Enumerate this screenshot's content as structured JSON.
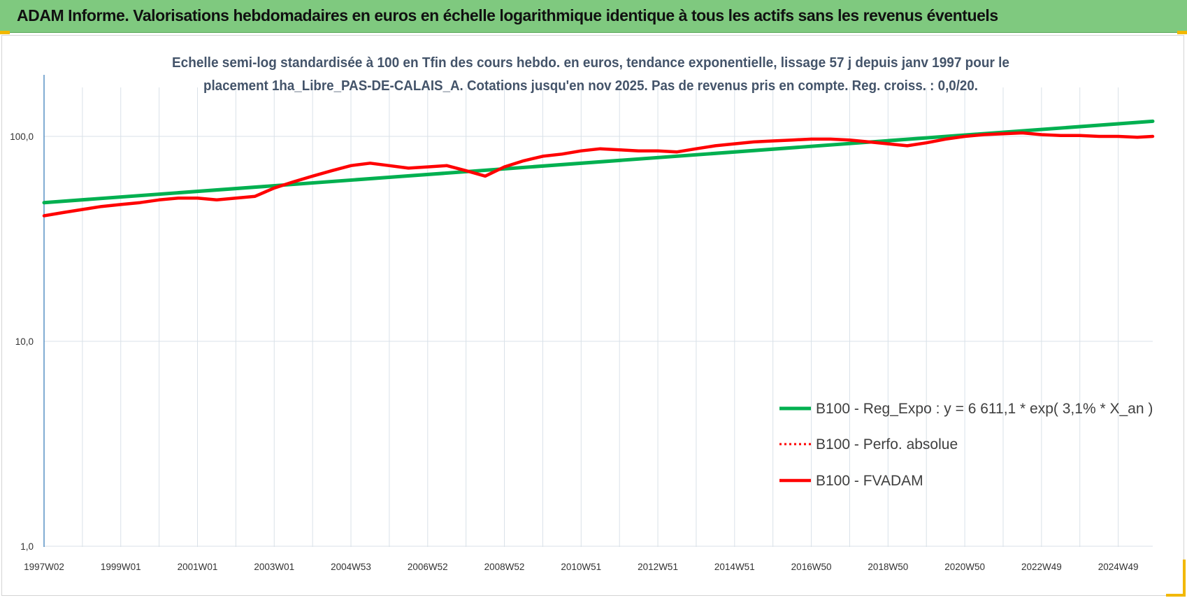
{
  "header": {
    "title": "ADAM Informe. Valorisations hebdomadaires en euros en échelle logarithmique identique à tous les actifs sans les revenus éventuels"
  },
  "colors": {
    "banner": "#7fc97f",
    "trend": "#00b050",
    "series": "#ff0000",
    "grid": "#d9e1e8",
    "axis": "#2e75b6",
    "accent": "#f2b800"
  },
  "chart_data": {
    "type": "line",
    "title_lines": [
      "Echelle semi-log standardisée à 100 en Tfin des cours hebdo. en euros, tendance exponentielle, lissage 57 j depuis janv 1997 pour le",
      "placement 1ha_Libre_PAS-DE-CALAIS_A. Cotations jusqu'en nov 2025. Pas de revenus pris en compte. Reg. croiss. : 0,0/20."
    ],
    "y_scale": "log",
    "ylim": [
      1,
      200
    ],
    "y_ticks": [
      {
        "value": 1,
        "label": "1,0"
      },
      {
        "value": 10,
        "label": "10,0"
      },
      {
        "value": 100,
        "label": "100,0"
      }
    ],
    "x_range": [
      1997.0,
      2025.9
    ],
    "x_ticks": [
      {
        "x": 1997.0,
        "label": "1997W02"
      },
      {
        "x": 1999.0,
        "label": "1999W01"
      },
      {
        "x": 2001.0,
        "label": "2001W01"
      },
      {
        "x": 2003.0,
        "label": "2003W01"
      },
      {
        "x": 2005.0,
        "label": "2004W53"
      },
      {
        "x": 2007.0,
        "label": "2006W52"
      },
      {
        "x": 2009.0,
        "label": "2008W52"
      },
      {
        "x": 2011.0,
        "label": "2010W51"
      },
      {
        "x": 2013.0,
        "label": "2012W51"
      },
      {
        "x": 2015.0,
        "label": "2014W51"
      },
      {
        "x": 2017.0,
        "label": "2016W50"
      },
      {
        "x": 2019.0,
        "label": "2018W50"
      },
      {
        "x": 2021.0,
        "label": "2020W50"
      },
      {
        "x": 2023.0,
        "label": "2022W49"
      },
      {
        "x": 2025.0,
        "label": "2024W49"
      }
    ],
    "grid": true,
    "legend_position": "bottom-right",
    "series": [
      {
        "name": "B100 - Reg_Expo : y = 6 611,1 * exp( 3,1% *  X_an )",
        "style": "solid-green",
        "x": [
          1997.0,
          2025.9
        ],
        "y": [
          47.5,
          118.5
        ]
      },
      {
        "name": "B100 - Perfo. absolue",
        "style": "dotted-red",
        "x": [],
        "y": []
      },
      {
        "name": "B100 - FVADAM",
        "style": "solid-red",
        "x": [
          1997.0,
          1997.5,
          1998.0,
          1998.5,
          1999.0,
          1999.5,
          2000.0,
          2000.5,
          2001.0,
          2001.5,
          2002.0,
          2002.5,
          2003.0,
          2003.5,
          2004.0,
          2004.5,
          2005.0,
          2005.5,
          2006.0,
          2006.5,
          2007.0,
          2007.5,
          2008.0,
          2008.5,
          2009.0,
          2009.5,
          2010.0,
          2010.5,
          2011.0,
          2011.5,
          2012.0,
          2012.5,
          2013.0,
          2013.5,
          2014.0,
          2014.5,
          2015.0,
          2015.5,
          2016.0,
          2016.5,
          2017.0,
          2017.5,
          2018.0,
          2018.5,
          2019.0,
          2019.5,
          2020.0,
          2020.5,
          2021.0,
          2021.5,
          2022.0,
          2022.5,
          2023.0,
          2023.5,
          2024.0,
          2024.5,
          2025.0,
          2025.5,
          2025.9
        ],
        "y": [
          41,
          42.5,
          44,
          45.5,
          46.5,
          47.5,
          49,
          50,
          50,
          49,
          50,
          51,
          56,
          60,
          64,
          68,
          72,
          74,
          72,
          70,
          71,
          72,
          68,
          64,
          71,
          76,
          80,
          82,
          85,
          87,
          86,
          85,
          85,
          84,
          87,
          90,
          92,
          94,
          95,
          96,
          97,
          97,
          96,
          94,
          92,
          90,
          93,
          97,
          100,
          102,
          103,
          104,
          102,
          101,
          101,
          100,
          100,
          99,
          100
        ]
      }
    ]
  }
}
